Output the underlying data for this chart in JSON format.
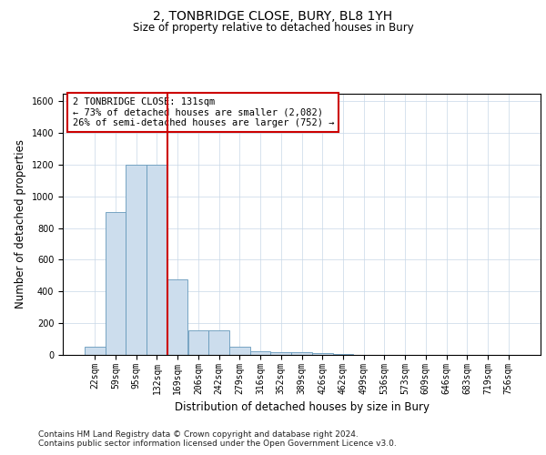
{
  "title": "2, TONBRIDGE CLOSE, BURY, BL8 1YH",
  "subtitle": "Size of property relative to detached houses in Bury",
  "xlabel": "Distribution of detached houses by size in Bury",
  "ylabel": "Number of detached properties",
  "bar_categories": [
    "22sqm",
    "59sqm",
    "95sqm",
    "132sqm",
    "169sqm",
    "206sqm",
    "242sqm",
    "279sqm",
    "316sqm",
    "352sqm",
    "389sqm",
    "426sqm",
    "462sqm",
    "499sqm",
    "536sqm",
    "573sqm",
    "609sqm",
    "646sqm",
    "683sqm",
    "719sqm",
    "756sqm"
  ],
  "bar_values": [
    50,
    900,
    1200,
    1200,
    475,
    155,
    155,
    50,
    25,
    20,
    20,
    10,
    5,
    0,
    0,
    0,
    0,
    0,
    0,
    0,
    0
  ],
  "bar_color": "#ccdded",
  "bar_edge_color": "#6699bb",
  "vline_x_idx": 4,
  "vline_color": "#cc0000",
  "ylim": [
    0,
    1650
  ],
  "yticks": [
    0,
    200,
    400,
    600,
    800,
    1000,
    1200,
    1400,
    1600
  ],
  "annotation_text": "2 TONBRIDGE CLOSE: 131sqm\n← 73% of detached houses are smaller (2,082)\n26% of semi-detached houses are larger (752) →",
  "annotation_box_color": "#ffffff",
  "annotation_box_edge_color": "#cc0000",
  "footer_text": "Contains HM Land Registry data © Crown copyright and database right 2024.\nContains public sector information licensed under the Open Government Licence v3.0.",
  "bg_color": "#ffffff",
  "grid_color": "#c8d8e8",
  "title_fontsize": 10,
  "subtitle_fontsize": 8.5,
  "axis_label_fontsize": 8.5,
  "tick_fontsize": 7,
  "footer_fontsize": 6.5
}
